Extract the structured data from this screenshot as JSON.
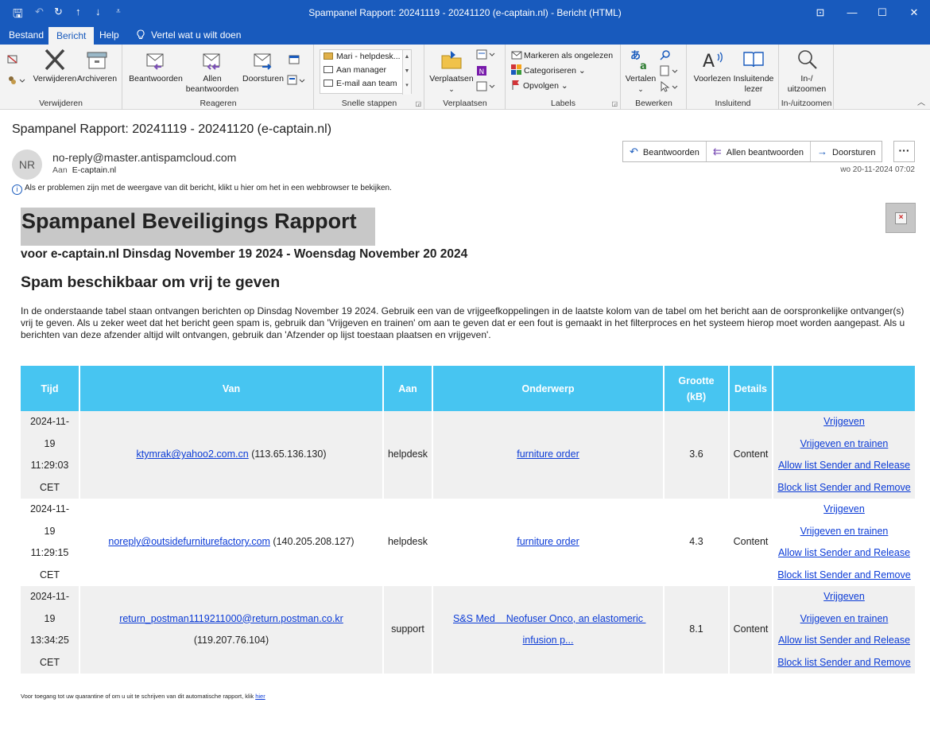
{
  "window": {
    "title": "Spampanel Rapport: 20241119 - 20241120 (e-captain.nl)  -  Bericht (HTML)",
    "controls": {
      "restore": "⊡",
      "minimize": "—",
      "maximize": "☐",
      "close": "✕"
    }
  },
  "quick_access": {
    "save": "🖫",
    "undo": "↶",
    "redo": "↻",
    "up": "↑",
    "down": "↓",
    "customize": "⩡"
  },
  "tabs": [
    {
      "label": "Bestand"
    },
    {
      "label": "Bericht"
    },
    {
      "label": "Help"
    }
  ],
  "tellme": "Vertel wat u wilt doen",
  "ribbon": {
    "verwijderen": {
      "label": "Verwijderen",
      "delete": "Verwijderen",
      "archive": "Archiveren"
    },
    "reageren": {
      "label": "Reageren",
      "reply": "Beantwoorden",
      "reply_all": "Allen beantwoorden",
      "forward": "Doorsturen"
    },
    "snelle_stappen": {
      "label": "Snelle stappen",
      "items": [
        "Mari - helpdesk...",
        "Aan manager",
        "E-mail aan team"
      ]
    },
    "verplaatsen": {
      "label": "Verplaatsen",
      "move": "Verplaatsen"
    },
    "labels": {
      "label": "Labels",
      "unread": "Markeren als ongelezen",
      "categorize": "Categoriseren",
      "followup": "Opvolgen"
    },
    "bewerken": {
      "label": "Bewerken",
      "translate": "Vertalen"
    },
    "insluitend": {
      "label": "Insluitend",
      "read_aloud": "Voorlezen",
      "immersive": "Insluitende lezer"
    },
    "zoom": {
      "label": "In-/uitzoomen",
      "zoom": "In-/ uitzoomen"
    }
  },
  "message": {
    "subject": "Spampanel Rapport: 20241119 - 20241120 (e-captain.nl)",
    "avatar_initials": "NR",
    "sender": "no-reply@master.antispamcloud.com",
    "to_label": "Aan",
    "to_value": "E-captain.nl",
    "reply": "Beantwoorden",
    "reply_all": "Allen beantwoorden",
    "forward": "Doorsturen",
    "more": "···",
    "date": "wo 20-11-2024 07:02",
    "info": "Als er problemen zijn met de weergave van dit bericht, klikt u hier om het in een webbrowser te bekijken."
  },
  "report": {
    "title": "Spampanel Beveiligings Rapport",
    "subtitle": "voor e-captain.nl Dinsdag November 19 2024 - Woensdag November 20 2024",
    "section_heading": "Spam beschikbaar om vrij te geven",
    "intro": "In de onderstaande tabel staan ontvangen berichten op Dinsdag November 19 2024. Gebruik een van de vrijgeefkoppelingen in de laatste kolom van de tabel om het bericht aan de oorspronkelijke ontvanger(s) vrij te geven. Als u zeker weet dat het bericht geen spam is, gebruik dan 'Vrijgeven en trainen' om aan te geven dat er een fout is gemaakt in het filterproces en het systeem hierop moet worden aangepast. Als u berichten van deze afzender altijd wilt ontvangen, gebruik dan 'Afzender op lijst toestaan plaatsen en vrijgeven'.",
    "columns": {
      "tijd": "Tijd",
      "van": "Van",
      "aan": "Aan",
      "onderwerp": "Onderwerp",
      "grootte": "Grootte (kB)",
      "details": "Details",
      "acties": ""
    },
    "rows": [
      {
        "tijd": [
          "2024-11-",
          "19",
          "11:29:03",
          "CET"
        ],
        "van_email": "ktymrak@yahoo2.com.cn",
        "van_ip": "(113.65.136.130)",
        "aan": "helpdesk",
        "onderwerp": "furniture order",
        "grootte": "3.6",
        "details": "Content"
      },
      {
        "tijd": [
          "2024-11-",
          "19",
          "11:29:15",
          "CET"
        ],
        "van_email": "noreply@outsidefurniturefactory.com",
        "van_ip": "(140.205.208.127)",
        "aan": "helpdesk",
        "onderwerp": "furniture order",
        "grootte": "4.3",
        "details": "Content"
      },
      {
        "tijd": [
          "2024-11-",
          "19",
          "13:34:25",
          "CET"
        ],
        "van_email": "return_postman1119211000@return.postman.co.kr",
        "van_ip": "(119.207.76.104)",
        "aan": "support",
        "onderwerp": "S&S Med    Neofuser Onco, an elastomeric infusion p...",
        "grootte": "8.1",
        "details": "Content"
      }
    ],
    "actions": [
      "Vrijgeven",
      "Vrijgeven en trainen",
      "Allow list Sender and Release",
      "Block list Sender and Remove"
    ],
    "footer_text": "Voor toegang tot uw quarantine of om u uit te schrijven van dit automatische rapport, klik",
    "footer_link": "hier"
  },
  "colors": {
    "brand": "#185abd",
    "table_header": "#47c5f1",
    "link": "#0b3bd6"
  }
}
